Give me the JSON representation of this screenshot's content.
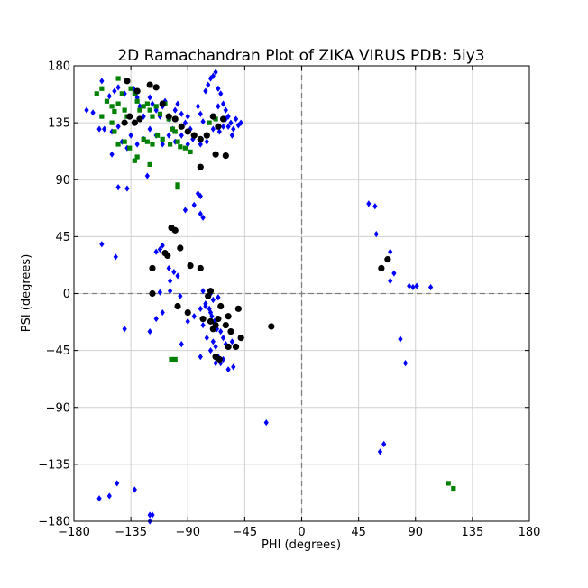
{
  "chart_data": {
    "type": "scatter",
    "title": "2D Ramachandran Plot  of ZIKA VIRUS PDB: 5iy3",
    "xlabel": "PHI (degrees)",
    "ylabel": "PSI (degrees)",
    "xlim": [
      -180,
      180
    ],
    "ylim": [
      -180,
      180
    ],
    "xticks": [
      -180,
      -135,
      -90,
      -45,
      0,
      45,
      90,
      135,
      180
    ],
    "yticks": [
      -180,
      -135,
      -90,
      -45,
      0,
      45,
      90,
      135,
      180
    ],
    "xtick_labels": [
      "−180",
      "−135",
      "−90",
      "−45",
      "0",
      "45",
      "90",
      "135",
      "180"
    ],
    "ytick_labels": [
      "−180",
      "−135",
      "−90",
      "−45",
      "0",
      "45",
      "90",
      "135",
      "180"
    ],
    "grid": true,
    "zero_lines": "dashed",
    "series": [
      {
        "marker": "diamond",
        "color": "#0000ff",
        "points": [
          [
            -158,
            168
          ],
          [
            -152,
            156
          ],
          [
            -148,
            160
          ],
          [
            -145,
            163
          ],
          [
            -140,
            158
          ],
          [
            -133,
            162
          ],
          [
            -130,
            155
          ],
          [
            -128,
            148
          ],
          [
            -125,
            140
          ],
          [
            -120,
            155
          ],
          [
            -118,
            150
          ],
          [
            -115,
            145
          ],
          [
            -112,
            140
          ],
          [
            -110,
            148
          ],
          [
            -108,
            152
          ],
          [
            -105,
            138
          ],
          [
            -102,
            130
          ],
          [
            -100,
            145
          ],
          [
            -98,
            150
          ],
          [
            -95,
            142
          ],
          [
            -92,
            135
          ],
          [
            -90,
            140
          ],
          [
            -88,
            130
          ],
          [
            -85,
            125
          ],
          [
            -82,
            148
          ],
          [
            -80,
            142
          ],
          [
            -78,
            136
          ],
          [
            -76,
            160
          ],
          [
            -74,
            165
          ],
          [
            -72,
            170
          ],
          [
            -70,
            172
          ],
          [
            -68,
            175
          ],
          [
            -66,
            162
          ],
          [
            -64,
            158
          ],
          [
            -62,
            150
          ],
          [
            -60,
            145
          ],
          [
            -58,
            140
          ],
          [
            -56,
            135
          ],
          [
            -54,
            130
          ],
          [
            -52,
            138
          ],
          [
            -50,
            133
          ],
          [
            -48,
            135
          ],
          [
            -66,
            148
          ],
          [
            -62,
            132
          ],
          [
            -58,
            132
          ],
          [
            -60,
            138
          ],
          [
            -55,
            125
          ],
          [
            -65,
            128
          ],
          [
            -70,
            130
          ],
          [
            -75,
            120
          ],
          [
            -80,
            118
          ],
          [
            -86,
            122
          ],
          [
            -90,
            118
          ],
          [
            -95,
            125
          ],
          [
            -100,
            120
          ],
          [
            -105,
            125
          ],
          [
            -110,
            118
          ],
          [
            -115,
            125
          ],
          [
            -120,
            130
          ],
          [
            -125,
            122
          ],
          [
            -130,
            118
          ],
          [
            -135,
            125
          ],
          [
            -138,
            115
          ],
          [
            -142,
            120
          ],
          [
            -145,
            132
          ],
          [
            -150,
            128
          ],
          [
            -156,
            130
          ],
          [
            -160,
            130
          ],
          [
            -165,
            143
          ],
          [
            -170,
            145
          ],
          [
            -150,
            110
          ],
          [
            -145,
            84
          ],
          [
            -138,
            83
          ],
          [
            -122,
            93
          ],
          [
            -82,
            79
          ],
          [
            -80,
            77
          ],
          [
            -85,
            70
          ],
          [
            -92,
            66
          ],
          [
            -80,
            63
          ],
          [
            -78,
            60
          ],
          [
            -110,
            38
          ],
          [
            -112,
            35
          ],
          [
            -115,
            33
          ],
          [
            -105,
            20
          ],
          [
            -104,
            10
          ],
          [
            -101,
            17
          ],
          [
            -98,
            14
          ],
          [
            -96,
            -2
          ],
          [
            -104,
            2
          ],
          [
            -112,
            1
          ],
          [
            -110,
            -15
          ],
          [
            -115,
            -20
          ],
          [
            -120,
            -30
          ],
          [
            -140,
            -28
          ],
          [
            -95,
            -40
          ],
          [
            -80,
            -50
          ],
          [
            -75,
            -35
          ],
          [
            -78,
            -25
          ],
          [
            -76,
            -10
          ],
          [
            -73,
            -12
          ],
          [
            -71,
            -18
          ],
          [
            -69,
            -22
          ],
          [
            -67,
            -28
          ],
          [
            -64,
            -30
          ],
          [
            -62,
            -35
          ],
          [
            -60,
            -40
          ],
          [
            -58,
            -42
          ],
          [
            -55,
            -38
          ],
          [
            -66,
            -3
          ],
          [
            -68,
            -42
          ],
          [
            -70,
            -38
          ],
          [
            -72,
            -45
          ],
          [
            -66,
            -50
          ],
          [
            -64,
            -55
          ],
          [
            -62,
            -52
          ],
          [
            -58,
            -60
          ],
          [
            -54,
            -58
          ],
          [
            -68,
            -55
          ],
          [
            -72,
            -15
          ],
          [
            -76,
            -8
          ],
          [
            -80,
            -12
          ],
          [
            -85,
            -18
          ],
          [
            -90,
            -22
          ],
          [
            -78,
            2
          ],
          [
            -72,
            0
          ],
          [
            -70,
            -5
          ],
          [
            -28,
            -102
          ],
          [
            53,
            71
          ],
          [
            58,
            69
          ],
          [
            59,
            47
          ],
          [
            70,
            33
          ],
          [
            73,
            16
          ],
          [
            70,
            10
          ],
          [
            85,
            6
          ],
          [
            88,
            5
          ],
          [
            91,
            6
          ],
          [
            102,
            5
          ],
          [
            78,
            -36
          ],
          [
            82,
            -55
          ],
          [
            62,
            -125
          ],
          [
            65,
            -119
          ],
          [
            -160,
            -162
          ],
          [
            -152,
            -160
          ],
          [
            -146,
            -150
          ],
          [
            -132,
            -155
          ],
          [
            -120,
            -175
          ],
          [
            -118,
            -175
          ],
          [
            -120,
            -180
          ],
          [
            -158,
            39
          ],
          [
            -147,
            29
          ]
        ]
      },
      {
        "marker": "square",
        "color": "#008000",
        "points": [
          [
            -145,
            170
          ],
          [
            -162,
            158
          ],
          [
            -158,
            162
          ],
          [
            -154,
            152
          ],
          [
            -150,
            148
          ],
          [
            -148,
            144
          ],
          [
            -145,
            150
          ],
          [
            -142,
            158
          ],
          [
            -140,
            145
          ],
          [
            -138,
            140
          ],
          [
            -135,
            162
          ],
          [
            -132,
            158
          ],
          [
            -130,
            152
          ],
          [
            -128,
            145
          ],
          [
            -125,
            148
          ],
          [
            -122,
            150
          ],
          [
            -120,
            145
          ],
          [
            -118,
            140
          ],
          [
            -115,
            148
          ],
          [
            -112,
            142
          ],
          [
            -108,
            150
          ],
          [
            -105,
            138
          ],
          [
            -102,
            130
          ],
          [
            -100,
            128
          ],
          [
            -98,
            120
          ],
          [
            -96,
            116
          ],
          [
            -92,
            115
          ],
          [
            -88,
            112
          ],
          [
            -145,
            118
          ],
          [
            -140,
            120
          ],
          [
            -136,
            115
          ],
          [
            -132,
            105
          ],
          [
            -130,
            108
          ],
          [
            -125,
            122
          ],
          [
            -122,
            120
          ],
          [
            -120,
            102
          ],
          [
            -118,
            118
          ],
          [
            -114,
            125
          ],
          [
            -110,
            122
          ],
          [
            -104,
            118
          ],
          [
            -158,
            140
          ],
          [
            -150,
            135
          ],
          [
            -148,
            128
          ],
          [
            -98,
            86
          ],
          [
            -98,
            84
          ],
          [
            -103,
            -52
          ],
          [
            -100,
            -52
          ],
          [
            -73,
            135
          ],
          [
            -68,
            138
          ],
          [
            116,
            -150
          ],
          [
            120,
            -154
          ]
        ]
      },
      {
        "marker": "circle",
        "color": "#000000",
        "points": [
          [
            -138,
            168
          ],
          [
            -130,
            160
          ],
          [
            -120,
            165
          ],
          [
            -115,
            163
          ],
          [
            -110,
            150
          ],
          [
            -105,
            140
          ],
          [
            -100,
            138
          ],
          [
            -95,
            132
          ],
          [
            -90,
            128
          ],
          [
            -85,
            125
          ],
          [
            -80,
            122
          ],
          [
            -75,
            125
          ],
          [
            -70,
            140
          ],
          [
            -66,
            132
          ],
          [
            -62,
            138
          ],
          [
            -68,
            110
          ],
          [
            -60,
            109
          ],
          [
            -80,
            100
          ],
          [
            -128,
            138
          ],
          [
            -132,
            135
          ],
          [
            -136,
            140
          ],
          [
            -140,
            135
          ],
          [
            -103,
            52
          ],
          [
            -100,
            50
          ],
          [
            -96,
            36
          ],
          [
            -108,
            32
          ],
          [
            -106,
            30
          ],
          [
            -118,
            20
          ],
          [
            -88,
            22
          ],
          [
            -80,
            20
          ],
          [
            -118,
            0
          ],
          [
            -98,
            -10
          ],
          [
            -90,
            -15
          ],
          [
            -78,
            -20
          ],
          [
            -72,
            -22
          ],
          [
            -68,
            -25
          ],
          [
            -60,
            -25
          ],
          [
            -56,
            -30
          ],
          [
            -52,
            -42
          ],
          [
            -58,
            -42
          ],
          [
            -48,
            -35
          ],
          [
            -50,
            -12
          ],
          [
            -58,
            -18
          ],
          [
            -64,
            -10
          ],
          [
            -66,
            -20
          ],
          [
            -70,
            -28
          ],
          [
            -74,
            -2
          ],
          [
            -72,
            2
          ],
          [
            -68,
            -50
          ],
          [
            -65,
            -52
          ],
          [
            -24,
            -26
          ],
          [
            63,
            20
          ],
          [
            68,
            27
          ]
        ]
      }
    ]
  }
}
